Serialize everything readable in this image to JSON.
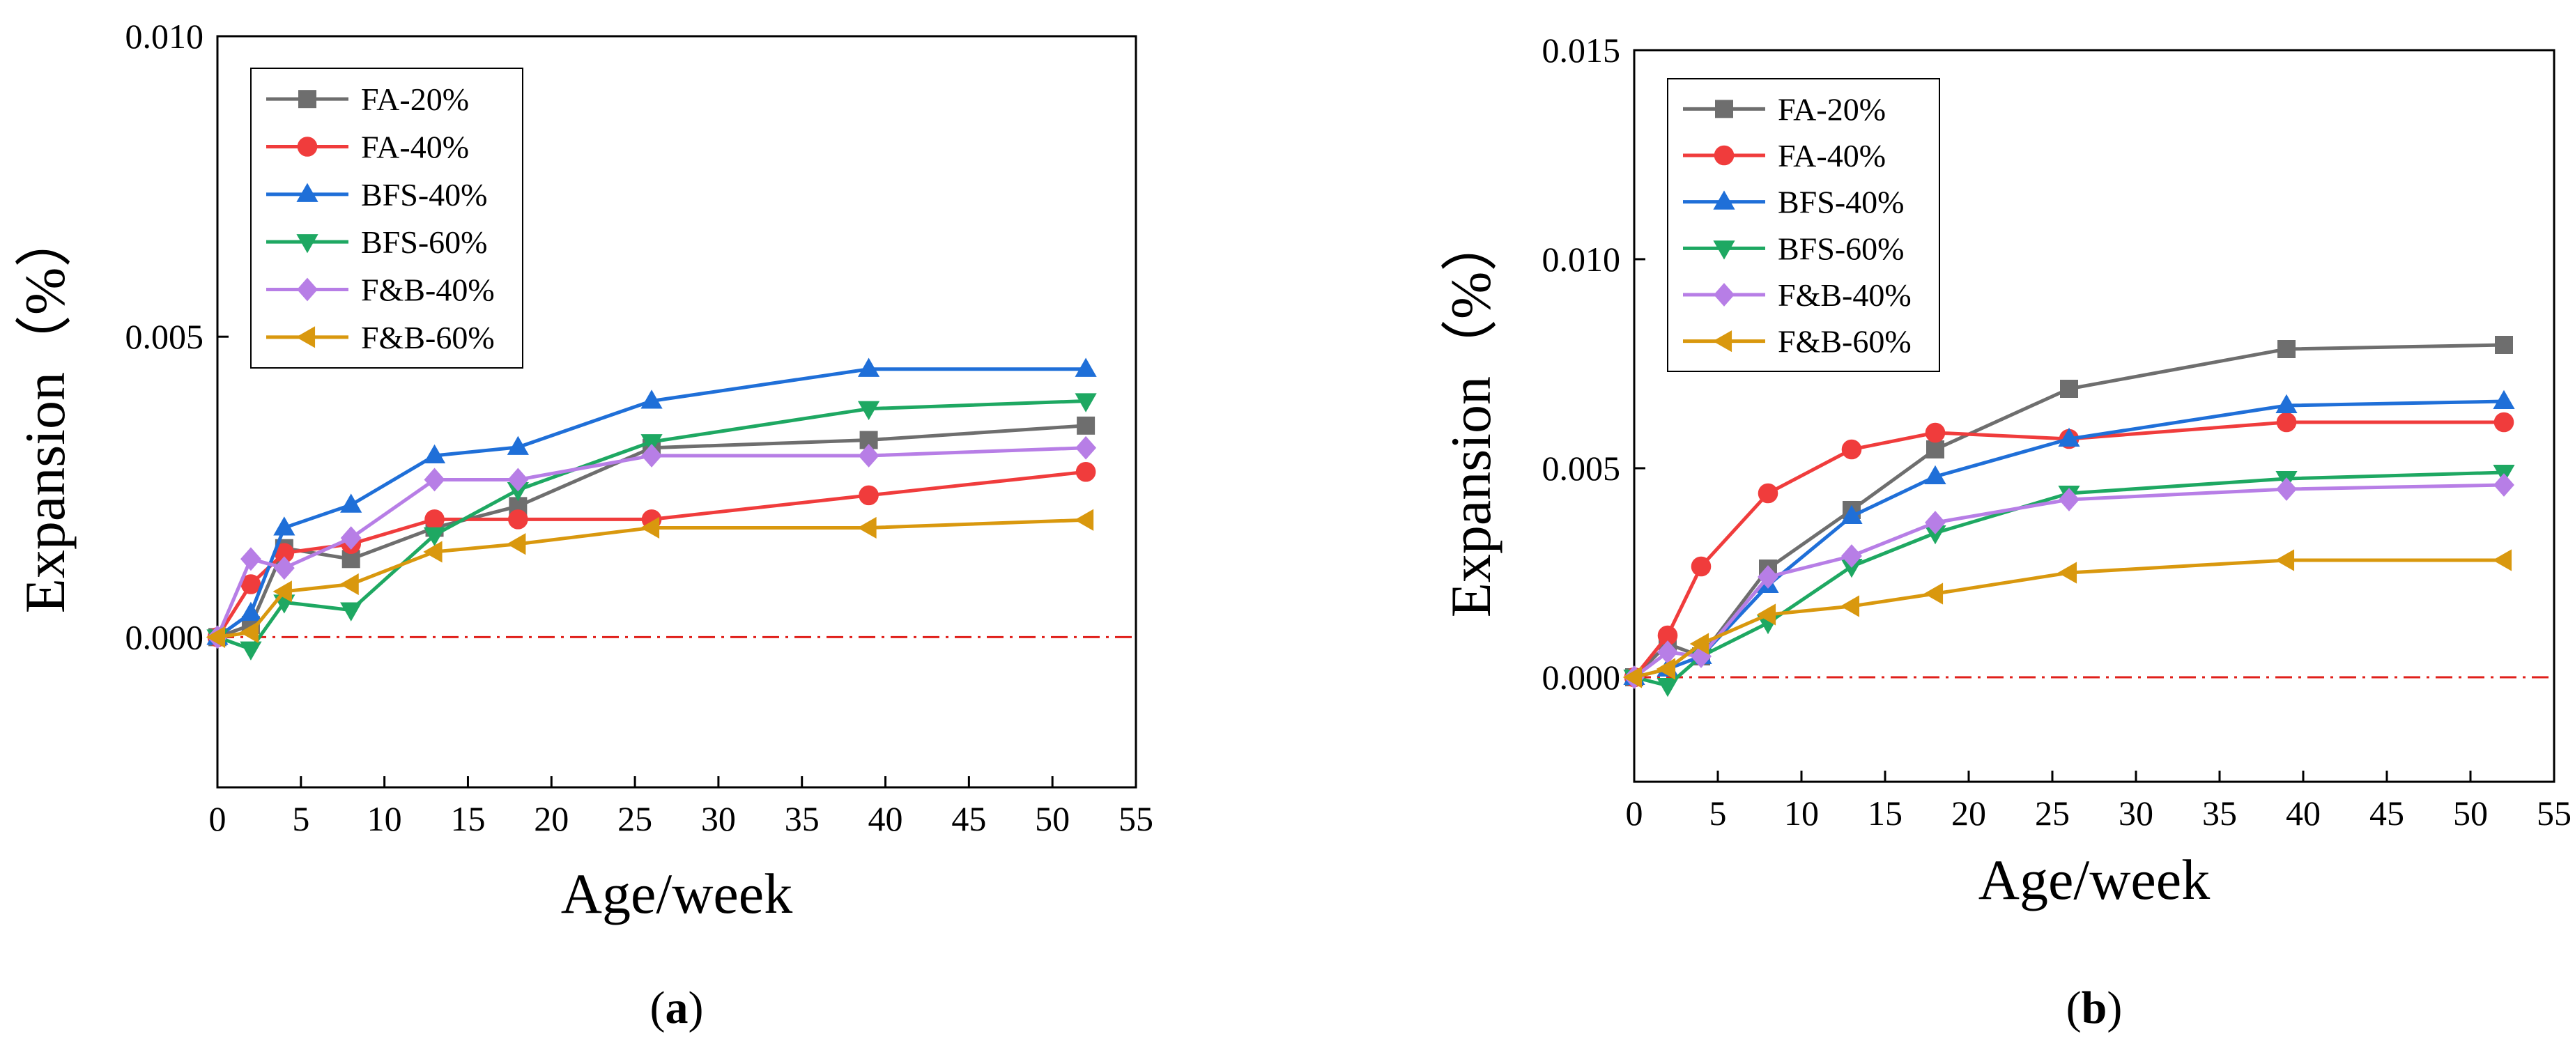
{
  "colors": {
    "FA-20%": "#6e6e6e",
    "FA-40%": "#f03c3c",
    "BFS-40%": "#1f6fd8",
    "BFS-60%": "#1ea862",
    "F&B-40%": "#b77ee6",
    "F&B-60%": "#d9980e",
    "zero_line": "#e0201b"
  },
  "chart_data": [
    {
      "type": "line",
      "caption_label": "a",
      "xlabel": "Age/week",
      "ylabel": "Expansion（%）",
      "xlim": [
        0,
        55
      ],
      "ylim": [
        -0.0025,
        0.01
      ],
      "xticks": [
        "0",
        "5",
        "10",
        "15",
        "20",
        "25",
        "30",
        "35",
        "40",
        "45",
        "50",
        "55"
      ],
      "yticks": [
        "0.000",
        "0.005",
        "0.010"
      ],
      "grid": false,
      "legend_position": "top-left",
      "reference_line": 0,
      "x": [
        0,
        2,
        4,
        8,
        13,
        18,
        26,
        39,
        52
      ],
      "series": [
        {
          "name": "FA-20%",
          "marker": "square",
          "values": [
            0.0,
            0.0002,
            0.00148,
            0.0013,
            0.00182,
            0.00218,
            0.00315,
            0.00328,
            0.00352
          ]
        },
        {
          "name": "FA-40%",
          "marker": "circle",
          "values": [
            0.0,
            0.00088,
            0.0014,
            0.00155,
            0.00196,
            0.00196,
            0.00196,
            0.00236,
            0.00275
          ]
        },
        {
          "name": "BFS-40%",
          "marker": "triangle-up",
          "values": [
            0.0,
            0.0004,
            0.00182,
            0.0022,
            0.00302,
            0.00316,
            0.00393,
            0.00446,
            0.00446
          ]
        },
        {
          "name": "BFS-60%",
          "marker": "triangle-down",
          "values": [
            0.0,
            -0.0002,
            0.00058,
            0.00045,
            0.0017,
            0.00245,
            0.00325,
            0.0038,
            0.00393
          ]
        },
        {
          "name": "F&B-40%",
          "marker": "diamond",
          "values": [
            0.0,
            0.0013,
            0.00115,
            0.00165,
            0.00262,
            0.00262,
            0.00302,
            0.00302,
            0.00315
          ]
        },
        {
          "name": "F&B-60%",
          "marker": "triangle-left",
          "values": [
            0.0,
            8e-05,
            0.00076,
            0.00088,
            0.00142,
            0.00155,
            0.00182,
            0.00182,
            0.00195
          ]
        }
      ]
    },
    {
      "type": "line",
      "caption_label": "b",
      "xlabel": "Age/week",
      "ylabel": "Expansion（%）",
      "xlim": [
        0,
        55
      ],
      "ylim": [
        -0.0025,
        0.015
      ],
      "xticks": [
        "0",
        "5",
        "10",
        "15",
        "20",
        "25",
        "30",
        "35",
        "40",
        "45",
        "50",
        "55"
      ],
      "yticks": [
        "0.000",
        "0.005",
        "0.010",
        "0.015"
      ],
      "grid": false,
      "legend_position": "top-left",
      "reference_line": 0,
      "x": [
        0,
        2,
        4,
        8,
        13,
        18,
        26,
        39,
        52
      ],
      "series": [
        {
          "name": "FA-20%",
          "marker": "square",
          "values": [
            0.0,
            0.0008,
            0.0005,
            0.0026,
            0.004,
            0.00545,
            0.0069,
            0.00785,
            0.00795
          ]
        },
        {
          "name": "FA-40%",
          "marker": "circle",
          "values": [
            0.0,
            0.001,
            0.00265,
            0.0044,
            0.00545,
            0.00585,
            0.0057,
            0.0061,
            0.0061
          ]
        },
        {
          "name": "BFS-40%",
          "marker": "triangle-up",
          "values": [
            0.0,
            0.0002,
            0.0005,
            0.0022,
            0.00385,
            0.0048,
            0.0057,
            0.0065,
            0.0066
          ]
        },
        {
          "name": "BFS-60%",
          "marker": "triangle-down",
          "values": [
            0.0,
            -0.0002,
            0.0005,
            0.0013,
            0.00265,
            0.00345,
            0.0044,
            0.00475,
            0.0049
          ]
        },
        {
          "name": "F&B-40%",
          "marker": "diamond",
          "values": [
            0.0,
            0.0006,
            0.0005,
            0.0024,
            0.0029,
            0.0037,
            0.00425,
            0.0045,
            0.0046
          ]
        },
        {
          "name": "F&B-60%",
          "marker": "triangle-left",
          "values": [
            0.0,
            0.0002,
            0.0008,
            0.0015,
            0.0017,
            0.002,
            0.0025,
            0.0028,
            0.0028
          ]
        }
      ]
    }
  ]
}
